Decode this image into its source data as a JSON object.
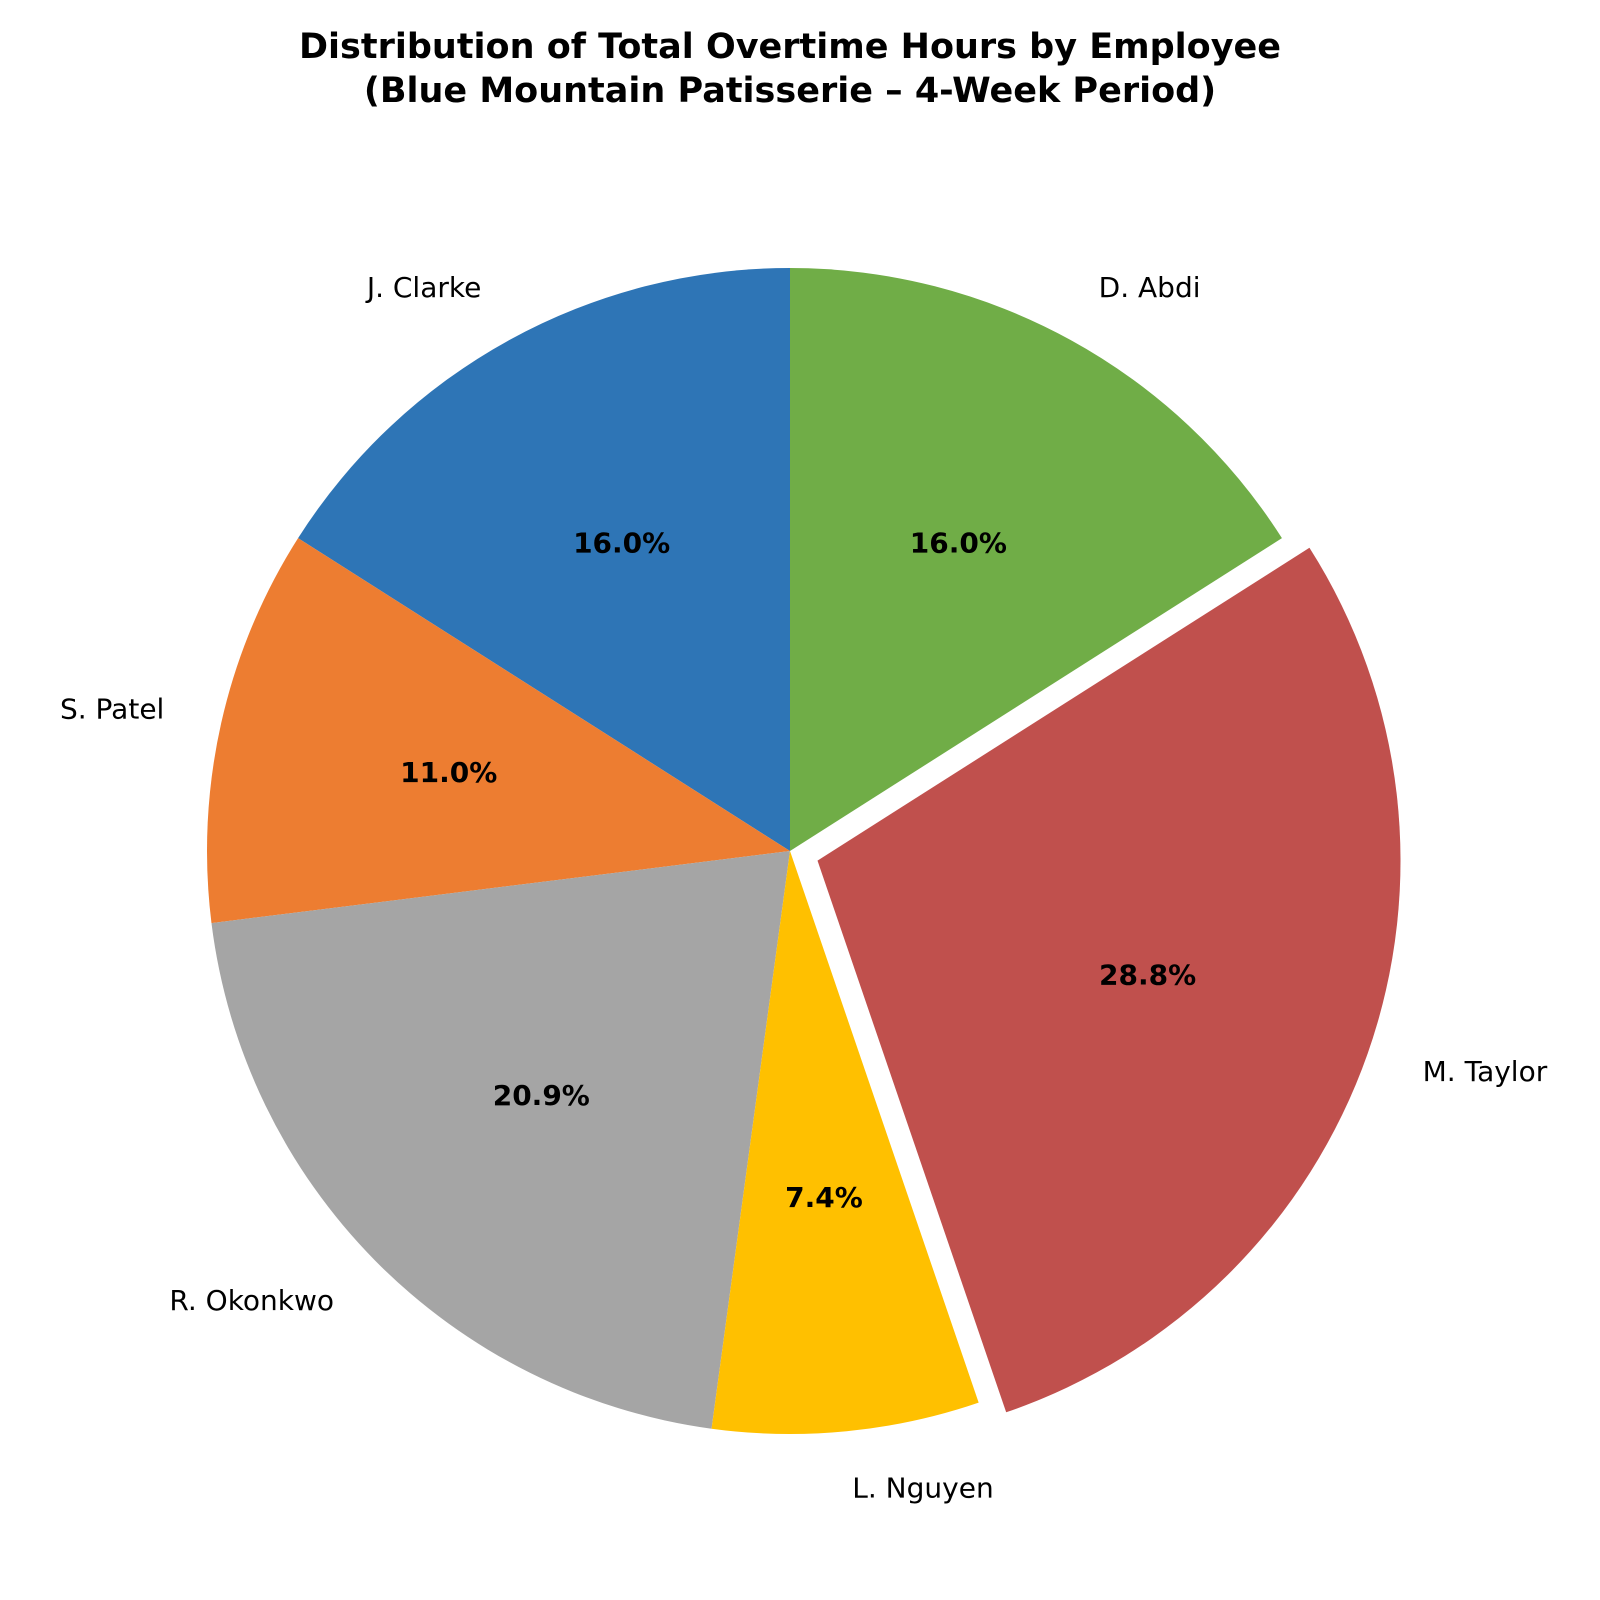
{
  "chart_data": {
    "type": "pie",
    "title": "Distribution of Total Overtime Hours by Employee",
    "subtitle": "(Blue Mountain Patisserie – 4-Week Period)",
    "categories": [
      "J. Clarke",
      "S. Patel",
      "R. Okonkwo",
      "L. Nguyen",
      "M. Taylor",
      "D. Abdi"
    ],
    "values": [
      16.0,
      11.0,
      20.9,
      7.4,
      28.8,
      16.0
    ],
    "value_labels": [
      "16.0%",
      "11.0%",
      "20.9%",
      "7.4%",
      "28.8%",
      "16.0%"
    ],
    "colors": [
      "#2e75b6",
      "#ed7d31",
      "#a5a5a5",
      "#ffc000",
      "#c0504d",
      "#70ad47"
    ],
    "explode": [
      0,
      0,
      0,
      0,
      0.05,
      0
    ],
    "start_angle": 90
  }
}
